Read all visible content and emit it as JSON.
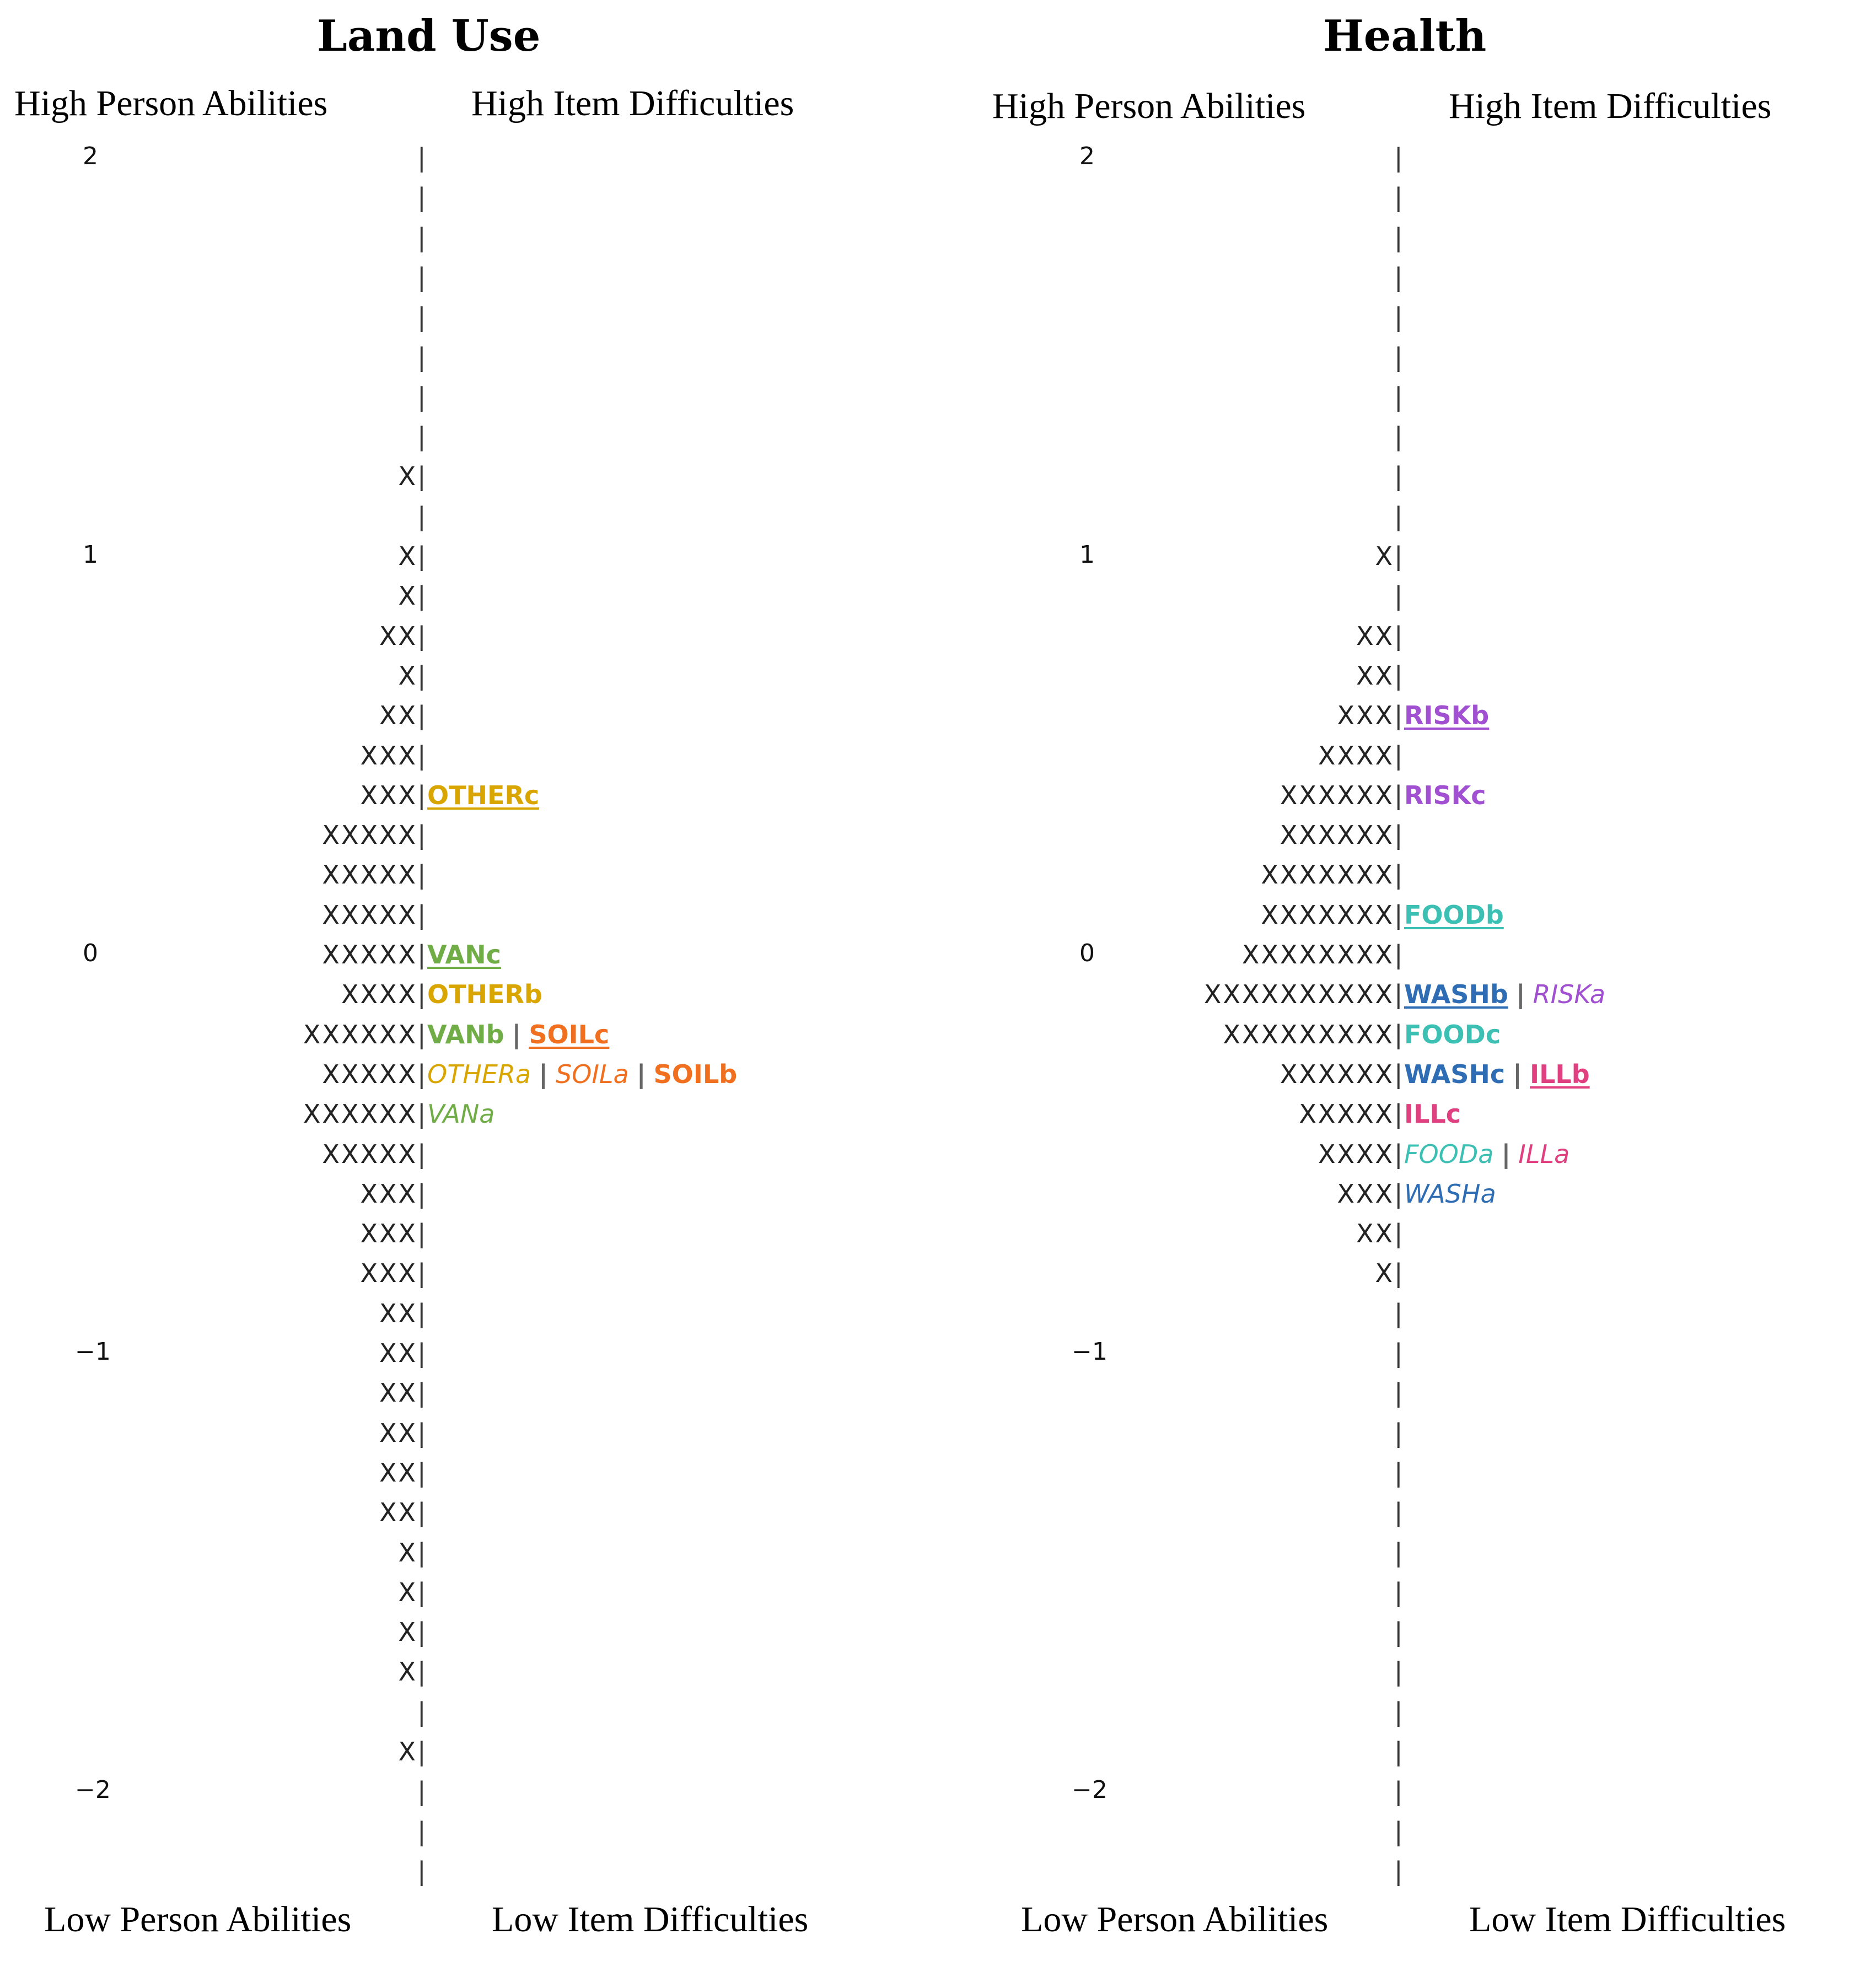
{
  "chart_data": [
    {
      "type": "table",
      "title": "Land Use",
      "header": {
        "person_high": "High Person Abilities",
        "item_high": "High Item Difficulties",
        "person_low": "Low Person Abilities",
        "item_low": "Low Item Difficulties"
      },
      "axis_ticks": [
        "2",
        "1",
        "0",
        "−1",
        "−2"
      ],
      "tick_values": [
        2,
        1,
        0,
        -1,
        -2
      ],
      "ylim": [
        -2.1,
        2.15
      ],
      "rows": [
        {
          "persons": "",
          "items": []
        },
        {
          "persons": "",
          "items": []
        },
        {
          "persons": "",
          "items": []
        },
        {
          "persons": "",
          "items": []
        },
        {
          "persons": "",
          "items": []
        },
        {
          "persons": "",
          "items": []
        },
        {
          "persons": "",
          "items": []
        },
        {
          "persons": "",
          "items": []
        },
        {
          "persons": "X",
          "items": []
        },
        {
          "persons": "",
          "items": []
        },
        {
          "persons": "X",
          "items": []
        },
        {
          "persons": "X",
          "items": []
        },
        {
          "persons": "XX",
          "items": []
        },
        {
          "persons": "X",
          "items": []
        },
        {
          "persons": "XX",
          "items": []
        },
        {
          "persons": "XXX",
          "items": []
        },
        {
          "persons": "XXX",
          "items": [
            {
              "label": "OTHERc",
              "color": "#D9A500",
              "style": "u"
            }
          ]
        },
        {
          "persons": "XXXXX",
          "items": []
        },
        {
          "persons": "XXXXX",
          "items": []
        },
        {
          "persons": "XXXXX",
          "items": []
        },
        {
          "persons": "XXXXX",
          "items": [
            {
              "label": "VANc",
              "color": "#70AD47",
              "style": "u"
            }
          ]
        },
        {
          "persons": "XXXX",
          "items": [
            {
              "label": "OTHERb",
              "color": "#D9A500",
              "style": "b"
            }
          ]
        },
        {
          "persons": "XXXXXX",
          "items": [
            {
              "label": "VANb",
              "color": "#70AD47",
              "style": "b"
            },
            {
              "label": "SOILc",
              "color": "#F07020",
              "style": "u"
            }
          ]
        },
        {
          "persons": "XXXXX",
          "items": [
            {
              "label": "OTHERa",
              "color": "#D9A500",
              "style": "i"
            },
            {
              "label": "SOILa",
              "color": "#F07020",
              "style": "i"
            },
            {
              "label": "SOILb",
              "color": "#F07020",
              "style": "b"
            }
          ]
        },
        {
          "persons": "XXXXXX",
          "items": [
            {
              "label": "VANa",
              "color": "#70AD47",
              "style": "i"
            }
          ]
        },
        {
          "persons": "XXXXX",
          "items": []
        },
        {
          "persons": "XXX",
          "items": []
        },
        {
          "persons": "XXX",
          "items": []
        },
        {
          "persons": "XXX",
          "items": []
        },
        {
          "persons": "XX",
          "items": []
        },
        {
          "persons": "XX",
          "items": []
        },
        {
          "persons": "XX",
          "items": []
        },
        {
          "persons": "XX",
          "items": []
        },
        {
          "persons": "XX",
          "items": []
        },
        {
          "persons": "XX",
          "items": []
        },
        {
          "persons": "X",
          "items": []
        },
        {
          "persons": "X",
          "items": []
        },
        {
          "persons": "X",
          "items": []
        },
        {
          "persons": "X",
          "items": []
        },
        {
          "persons": "",
          "items": []
        },
        {
          "persons": "X",
          "items": []
        },
        {
          "persons": "",
          "items": []
        },
        {
          "persons": "",
          "items": []
        },
        {
          "persons": "",
          "items": []
        }
      ]
    },
    {
      "type": "table",
      "title": "Health",
      "header": {
        "person_high": "High Person Abilities",
        "item_high": "High Item Difficulties",
        "person_low": "Low Person Abilities",
        "item_low": "Low Item Difficulties"
      },
      "axis_ticks": [
        "2",
        "1",
        "0",
        "−1",
        "−2"
      ],
      "tick_values": [
        2,
        1,
        0,
        -1,
        -2
      ],
      "ylim": [
        -2.1,
        2.15
      ],
      "rows": [
        {
          "persons": "",
          "items": []
        },
        {
          "persons": "",
          "items": []
        },
        {
          "persons": "",
          "items": []
        },
        {
          "persons": "",
          "items": []
        },
        {
          "persons": "",
          "items": []
        },
        {
          "persons": "",
          "items": []
        },
        {
          "persons": "",
          "items": []
        },
        {
          "persons": "",
          "items": []
        },
        {
          "persons": "",
          "items": []
        },
        {
          "persons": "",
          "items": []
        },
        {
          "persons": "X",
          "items": []
        },
        {
          "persons": "",
          "items": []
        },
        {
          "persons": "XX",
          "items": []
        },
        {
          "persons": "XX",
          "items": []
        },
        {
          "persons": "XXX",
          "items": [
            {
              "label": "RISKb",
              "color": "#A050D0",
              "style": "u"
            }
          ]
        },
        {
          "persons": "XXXX",
          "items": []
        },
        {
          "persons": "XXXXXX",
          "items": [
            {
              "label": "RISKc",
              "color": "#A050D0",
              "style": "b"
            }
          ]
        },
        {
          "persons": "XXXXXX",
          "items": []
        },
        {
          "persons": "XXXXXXX",
          "items": []
        },
        {
          "persons": "XXXXXXX",
          "items": [
            {
              "label": "FOODb",
              "color": "#3CC0B4",
              "style": "u"
            }
          ]
        },
        {
          "persons": "XXXXXXXX",
          "items": []
        },
        {
          "persons": "XXXXXXXXXX",
          "items": [
            {
              "label": "WASHb",
              "color": "#2E6DB4",
              "style": "u"
            },
            {
              "label": "RISKa",
              "color": "#A050D0",
              "style": "i"
            }
          ]
        },
        {
          "persons": "XXXXXXXXX",
          "items": [
            {
              "label": "FOODc",
              "color": "#3CC0B4",
              "style": "b"
            }
          ]
        },
        {
          "persons": "XXXXXX",
          "items": [
            {
              "label": "WASHc",
              "color": "#2E6DB4",
              "style": "b"
            },
            {
              "label": "ILLb",
              "color": "#E04080",
              "style": "u"
            }
          ]
        },
        {
          "persons": "XXXXX",
          "items": [
            {
              "label": "ILLc",
              "color": "#E04080",
              "style": "b"
            }
          ]
        },
        {
          "persons": "XXXX",
          "items": [
            {
              "label": "FOODa",
              "color": "#3CC0B4",
              "style": "i"
            },
            {
              "label": "ILLa",
              "color": "#E04080",
              "style": "i"
            }
          ]
        },
        {
          "persons": "XXX",
          "items": [
            {
              "label": "WASHa",
              "color": "#2E6DB4",
              "style": "i"
            }
          ]
        },
        {
          "persons": "XX",
          "items": []
        },
        {
          "persons": "X",
          "items": []
        },
        {
          "persons": "",
          "items": []
        },
        {
          "persons": "",
          "items": []
        },
        {
          "persons": "",
          "items": []
        },
        {
          "persons": "",
          "items": []
        },
        {
          "persons": "",
          "items": []
        },
        {
          "persons": "",
          "items": []
        },
        {
          "persons": "",
          "items": []
        },
        {
          "persons": "",
          "items": []
        },
        {
          "persons": "",
          "items": []
        },
        {
          "persons": "",
          "items": []
        },
        {
          "persons": "",
          "items": []
        },
        {
          "persons": "",
          "items": []
        },
        {
          "persons": "",
          "items": []
        },
        {
          "persons": "",
          "items": []
        },
        {
          "persons": "",
          "items": []
        }
      ]
    }
  ]
}
